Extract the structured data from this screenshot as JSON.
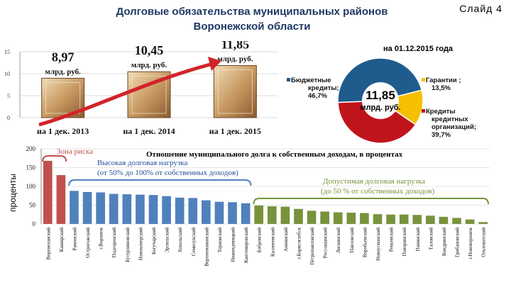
{
  "header": {
    "title_line1": "Долговые обязательства муниципальных районов",
    "title_line2": "Воронежской области",
    "slide_number": "Слайд 4"
  },
  "colors": {
    "red": "#c0504d",
    "blue": "#4f81bd",
    "green": "#77933c",
    "pie_blue": "#1f5b8c",
    "pie_yellow": "#f5c000",
    "pie_red": "#c0141c",
    "arrow": "#d2232a"
  },
  "chart_data": [
    {
      "type": "bar",
      "ylim": [
        0,
        15
      ],
      "yticks": [
        0,
        5,
        10,
        15
      ],
      "unit": "млрд. руб.",
      "categories": [
        "на 1 дек. 2013",
        "на 1 дек. 2014",
        "на 1 дек. 2015"
      ],
      "values": [
        8.97,
        10.45,
        11.85
      ],
      "value_labels": [
        "8,97",
        "10,45",
        "11,85"
      ]
    },
    {
      "type": "pie",
      "title": "на 01.12.2015 года",
      "center_value": "11,85",
      "center_unit": "млрд. руб.",
      "slices": [
        {
          "label": "Бюджетные кредиты;",
          "pct_label": "46,7%",
          "value": 46.7
        },
        {
          "label": "Гарантии ;",
          "pct_label": "13,5%",
          "value": 13.5
        },
        {
          "label": "Кредиты кредитных организаций;",
          "pct_label": "39,7%",
          "value": 39.7
        }
      ]
    },
    {
      "type": "bar",
      "title": "Отношение муниципального долга к собственным доходам, в процентах",
      "ylabel": "проценты",
      "ylim": [
        0,
        200
      ],
      "yticks": [
        0,
        50,
        100,
        150,
        200
      ],
      "zones": [
        {
          "name": "Зона риска",
          "desc": ""
        },
        {
          "name": "Высокая долговая нагрузка",
          "desc": "(от 50% до 100% от собственных доходов)"
        },
        {
          "name": "Допустимая долговая нагрузка",
          "desc": "(до 50 % от собственных доходов)"
        }
      ],
      "categories": [
        "Верхнехавский",
        "Каширский",
        "Рамонский",
        "Острогожский",
        "г.Воронеж",
        "Подгоренский",
        "Бутурлиновский",
        "Новохоперский",
        "Богучарский",
        "Эртильский",
        "Хохольский",
        "Семилукский",
        "Верхнемамонский",
        "Терновский",
        "Нижнедевицкий",
        "Кантемировский",
        "Бобровский",
        "Калачеевский",
        "Аннинский",
        "г.Борисоглебск",
        "Петропавловский",
        "Россошанский",
        "Лискинский",
        "Павловский",
        "Воробьевский",
        "Новоусманский",
        "Репьевский",
        "Поворинский",
        "Панинский",
        "Таловский",
        "Кондринский",
        "Грибановский",
        "г.Нововоронеж",
        "Ольховатский"
      ],
      "values": [
        168,
        130,
        88,
        85,
        84,
        80,
        79,
        78,
        77,
        74,
        70,
        69,
        63,
        59,
        58,
        55,
        49,
        47,
        46,
        40,
        35,
        33,
        31,
        30,
        29,
        26,
        25,
        25,
        24,
        22,
        19,
        16,
        12,
        5
      ],
      "zone_index": [
        0,
        0,
        1,
        1,
        1,
        1,
        1,
        1,
        1,
        1,
        1,
        1,
        1,
        1,
        1,
        1,
        2,
        2,
        2,
        2,
        2,
        2,
        2,
        2,
        2,
        2,
        2,
        2,
        2,
        2,
        2,
        2,
        2,
        2
      ]
    }
  ]
}
